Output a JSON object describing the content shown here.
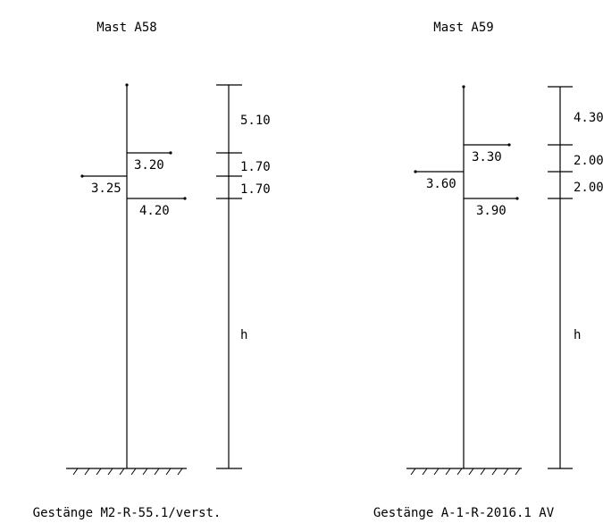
{
  "masts": [
    {
      "title": "Mast A58",
      "arms": [
        "3.20",
        "3.25",
        "4.20"
      ],
      "dims": [
        "5.10",
        "1.70",
        "1.70",
        "h"
      ],
      "gestaenge": "Gestänge M2-R-55.1/verst."
    },
    {
      "title": "Mast A59",
      "arms": [
        "3.30",
        "3.60",
        "3.90"
      ],
      "dims": [
        "4.30",
        "2.00",
        "2.00",
        "h"
      ],
      "gestaenge": "Gestänge A-1-R-2016.1 AV"
    }
  ]
}
